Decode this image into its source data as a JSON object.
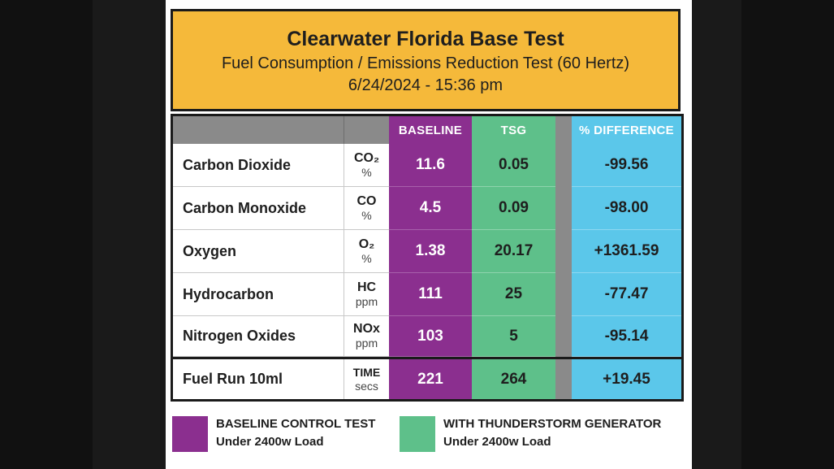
{
  "header": {
    "title": "Clearwater Florida Base Test",
    "subtitle": "Fuel Consumption / Emissions Reduction Test (60 Hertz)",
    "datetime": "6/24/2024 - 15:36 pm"
  },
  "columns": {
    "baseline": "BASELINE",
    "tsg": "TSG",
    "difference": "% DIFFERENCE"
  },
  "rows": [
    {
      "name": "Carbon Dioxide",
      "unit_top": "CO₂",
      "unit_bottom": "%",
      "baseline": "11.6",
      "tsg": "0.05",
      "difference": "-99.56"
    },
    {
      "name": "Carbon Monoxide",
      "unit_top": "CO",
      "unit_bottom": "%",
      "baseline": "4.5",
      "tsg": "0.09",
      "difference": "-98.00"
    },
    {
      "name": "Oxygen",
      "unit_top": "O₂",
      "unit_bottom": "%",
      "baseline": "1.38",
      "tsg": "20.17",
      "difference": "+1361.59"
    },
    {
      "name": "Hydrocarbon",
      "unit_top": "HC",
      "unit_bottom": "ppm",
      "baseline": "111",
      "tsg": "25",
      "difference": "-77.47"
    },
    {
      "name": "Nitrogen Oxides",
      "unit_top": "NOx",
      "unit_bottom": "ppm",
      "baseline": "103",
      "tsg": "5",
      "difference": "-95.14"
    },
    {
      "name": "Fuel Run 10ml",
      "unit_top": "TIME",
      "unit_bottom": "secs",
      "baseline": "221",
      "tsg": "264",
      "difference": "+19.45"
    }
  ],
  "legend": {
    "baseline_line1": "BASELINE CONTROL TEST",
    "baseline_line2": "Under 2400w Load",
    "tsg_line1": "WITH THUNDERSTORM GENERATOR",
    "tsg_line2": "Under 2400w Load"
  },
  "colors": {
    "header_bg": "#f5b93a",
    "baseline": "#8b2f8f",
    "tsg": "#5ec08a",
    "difference": "#5bc7ea",
    "header_grey": "#8a8a8a"
  }
}
